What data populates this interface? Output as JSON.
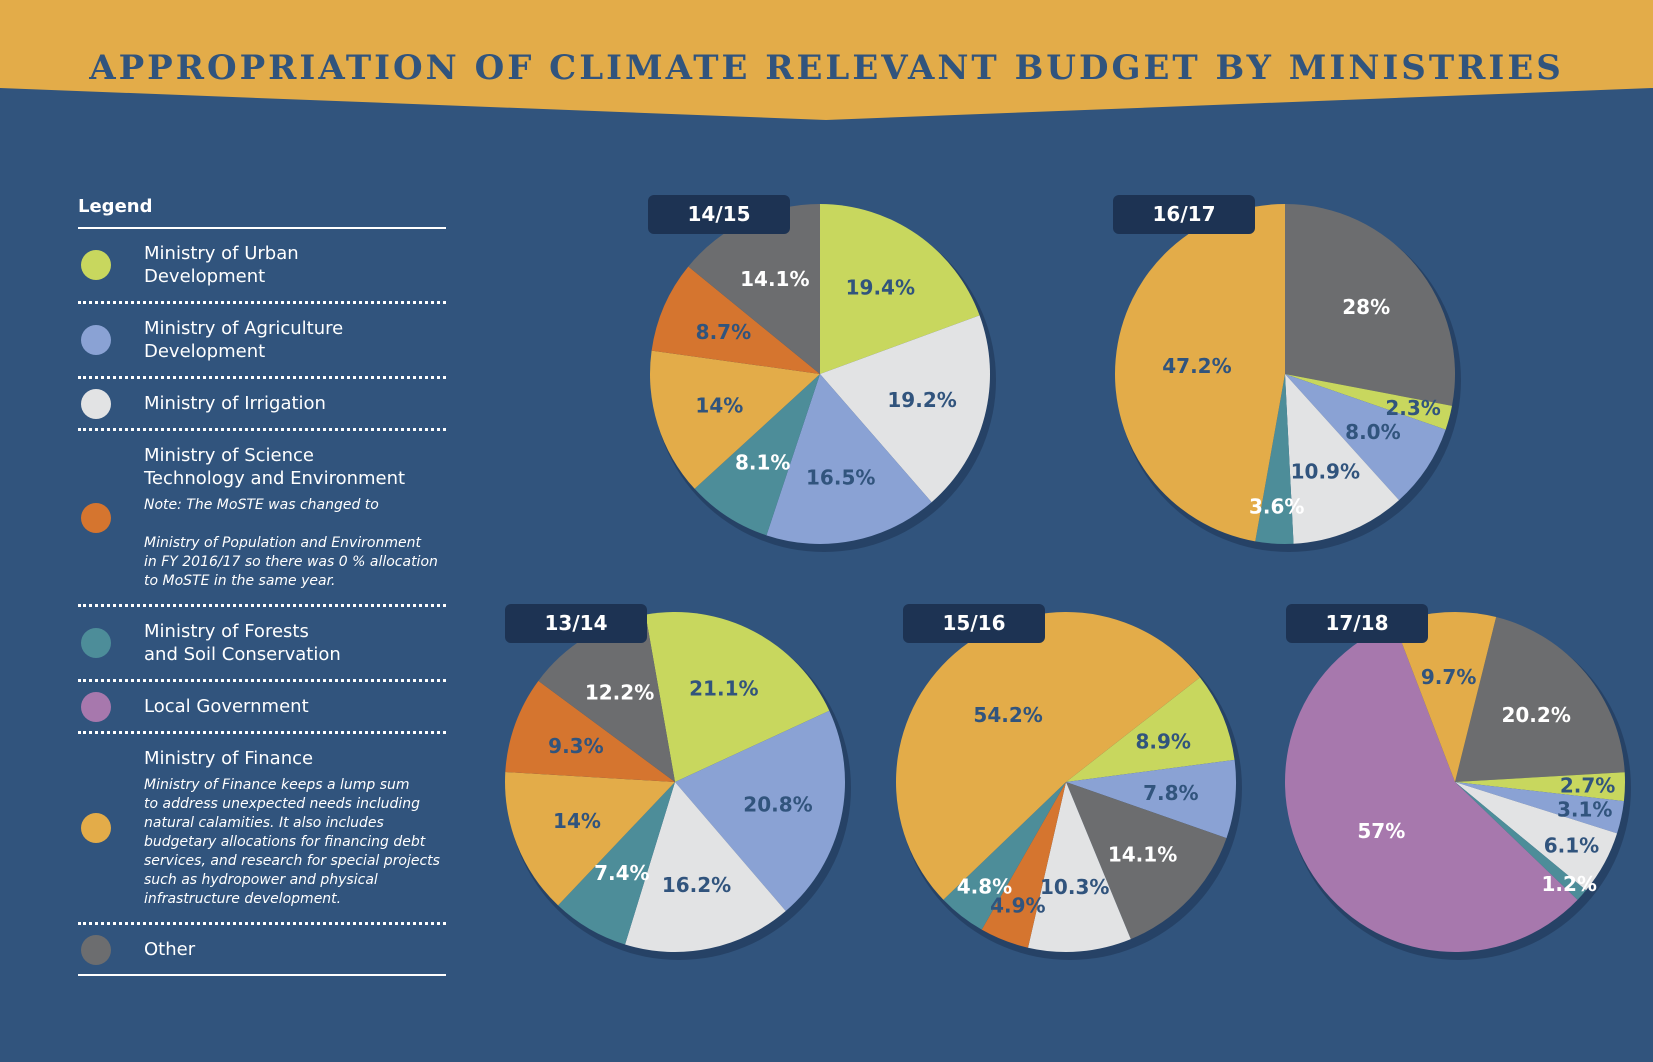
{
  "title": "APPROPRIATION OF CLIMATE RELEVANT BUDGET BY MINISTRIES",
  "colors": {
    "background": "#31547d",
    "banner": "#e3ac49",
    "title_text": "#31547d",
    "tag": "#1d3353",
    "label_dark": "#31547d",
    "label_light": "#ffffff"
  },
  "legend": {
    "heading": "Legend",
    "items": [
      {
        "key": "urban",
        "label": "Ministry of Urban\nDevelopment",
        "color": "#c8d75e"
      },
      {
        "key": "agri",
        "label": "Ministry of Agriculture\nDevelopment",
        "color": "#8aa2d4"
      },
      {
        "key": "irrig",
        "label": "Ministry of Irrigation",
        "color": "#e2e3e4"
      },
      {
        "key": "moste",
        "label": "Ministry of Science\nTechnology and Environment",
        "color": "#d5752f",
        "note": "Note: The MoSTE was changed to\n\nMinistry of Population and Environment\nin FY 2016/17 so there was 0 % allocation\nto MoSTE in the same year."
      },
      {
        "key": "forest",
        "label": "Ministry of Forests\nand Soil Conservation",
        "color": "#4d8d99"
      },
      {
        "key": "local",
        "label": "Local Government",
        "color": "#a778ad"
      },
      {
        "key": "finance",
        "label": "Ministry of Finance",
        "color": "#e3ac49",
        "note": "Ministry of Finance keeps a lump sum\nto address unexpected needs including\nnatural calamities. It also includes\nbudgetary allocations for financing debt\nservices, and research for special projects\nsuch as hydropower and physical\ninfrastructure development."
      },
      {
        "key": "other",
        "label": "Other",
        "color": "#6c6d6f"
      }
    ]
  },
  "chart_data": [
    {
      "type": "pie",
      "tag": "14/15",
      "start_angle_deg": 0,
      "slices": [
        {
          "key": "urban",
          "value": 19.4,
          "label": "19.4%",
          "label_color": "dark"
        },
        {
          "key": "irrig",
          "value": 19.2,
          "label": "19.2%",
          "label_color": "dark"
        },
        {
          "key": "agri",
          "value": 16.5,
          "label": "16.5%",
          "label_color": "dark"
        },
        {
          "key": "forest",
          "value": 8.1,
          "label": "8.1%",
          "label_color": "light"
        },
        {
          "key": "finance",
          "value": 14.0,
          "label": "14%",
          "label_color": "dark"
        },
        {
          "key": "moste",
          "value": 8.7,
          "label": "8.7%",
          "label_color": "dark"
        },
        {
          "key": "other",
          "value": 14.1,
          "label": "14.1%",
          "label_color": "light"
        }
      ]
    },
    {
      "type": "pie",
      "tag": "16/17",
      "start_angle_deg": 0,
      "slices": [
        {
          "key": "other",
          "value": 28.0,
          "label": "28%",
          "label_color": "light"
        },
        {
          "key": "urban",
          "value": 2.3,
          "label": "2.3%",
          "label_color": "dark"
        },
        {
          "key": "agri",
          "value": 8.0,
          "label": "8.0%",
          "label_color": "dark"
        },
        {
          "key": "irrig",
          "value": 10.9,
          "label": "10.9%",
          "label_color": "dark"
        },
        {
          "key": "forest",
          "value": 3.6,
          "label": "3.6%",
          "label_color": "light"
        },
        {
          "key": "finance",
          "value": 47.2,
          "label": "47.2%",
          "label_color": "dark"
        }
      ]
    },
    {
      "type": "pie",
      "tag": "13/14",
      "start_angle_deg": -10,
      "slices": [
        {
          "key": "urban",
          "value": 21.1,
          "label": "21.1%",
          "label_color": "dark"
        },
        {
          "key": "agri",
          "value": 20.8,
          "label": "20.8%",
          "label_color": "dark"
        },
        {
          "key": "irrig",
          "value": 16.2,
          "label": "16.2%",
          "label_color": "dark"
        },
        {
          "key": "forest",
          "value": 7.4,
          "label": "7.4%",
          "label_color": "light"
        },
        {
          "key": "finance",
          "value": 14.0,
          "label": "14%",
          "label_color": "dark"
        },
        {
          "key": "moste",
          "value": 9.3,
          "label": "9.3%",
          "label_color": "dark"
        },
        {
          "key": "other",
          "value": 12.2,
          "label": "12.2%",
          "label_color": "light"
        }
      ]
    },
    {
      "type": "pie",
      "tag": "15/16",
      "start_angle_deg": 52,
      "slices": [
        {
          "key": "urban",
          "value": 8.9,
          "label": "8.9%",
          "label_color": "dark"
        },
        {
          "key": "agri",
          "value": 7.8,
          "label": "7.8%",
          "label_color": "dark"
        },
        {
          "key": "other",
          "value": 14.1,
          "label": "14.1%",
          "label_color": "light"
        },
        {
          "key": "irrig",
          "value": 10.3,
          "label": "10.3%",
          "label_color": "dark"
        },
        {
          "key": "moste",
          "value": 4.9,
          "label": "4.9%",
          "label_color": "dark"
        },
        {
          "key": "forest",
          "value": 4.8,
          "label": "4.8%",
          "label_color": "light"
        },
        {
          "key": "finance",
          "value": 54.2,
          "label": "54.2%",
          "label_color": "dark"
        }
      ]
    },
    {
      "type": "pie",
      "tag": "17/18",
      "start_angle_deg": 14,
      "slices": [
        {
          "key": "other",
          "value": 20.2,
          "label": "20.2%",
          "label_color": "light"
        },
        {
          "key": "urban",
          "value": 2.7,
          "label": "2.7%",
          "label_color": "dark"
        },
        {
          "key": "agri",
          "value": 3.1,
          "label": "3.1%",
          "label_color": "dark"
        },
        {
          "key": "irrig",
          "value": 6.1,
          "label": "6.1%",
          "label_color": "dark"
        },
        {
          "key": "forest",
          "value": 1.2,
          "label": "1.2%",
          "label_color": "light"
        },
        {
          "key": "local",
          "value": 57.0,
          "label": "57%",
          "label_color": "light"
        },
        {
          "key": "finance",
          "value": 9.7,
          "label": "9.7%",
          "label_color": "dark"
        }
      ]
    }
  ]
}
